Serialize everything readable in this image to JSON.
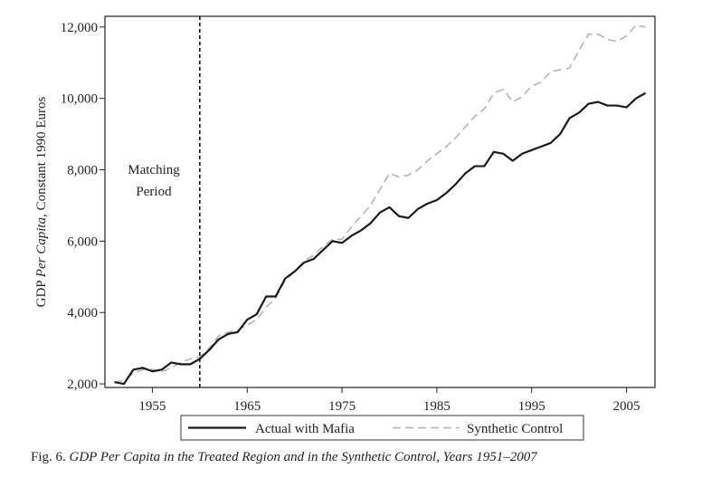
{
  "chart_data": {
    "type": "line",
    "ylabel_prefix": "GDP ",
    "ylabel_italic": "Per Capita",
    "ylabel_suffix": ", Constant 1990 Euros",
    "xlim": [
      1950,
      2008
    ],
    "ylim": [
      1900,
      12300
    ],
    "xticks": [
      1955,
      1965,
      1975,
      1985,
      1995,
      2005
    ],
    "yticks": [
      2000,
      4000,
      6000,
      8000,
      10000,
      12000
    ],
    "ytick_labels": [
      "2,000",
      "4,000",
      "6,000",
      "8,000",
      "10,000",
      "12,000"
    ],
    "grid": false,
    "legend_placement": "bottom",
    "annotation": {
      "line1": "Matching",
      "line2": "Period",
      "x": 1960
    },
    "series": [
      {
        "name": "Actual with Mafia",
        "style": "solid",
        "color": "#1a1a1a",
        "x": [
          1951,
          1952,
          1953,
          1954,
          1955,
          1956,
          1957,
          1958,
          1959,
          1960,
          1961,
          1962,
          1963,
          1964,
          1965,
          1966,
          1967,
          1968,
          1969,
          1970,
          1971,
          1972,
          1973,
          1974,
          1975,
          1976,
          1977,
          1978,
          1979,
          1980,
          1981,
          1982,
          1983,
          1984,
          1985,
          1986,
          1987,
          1988,
          1989,
          1990,
          1991,
          1992,
          1993,
          1994,
          1995,
          1996,
          1997,
          1998,
          1999,
          2000,
          2001,
          2002,
          2003,
          2004,
          2005,
          2006,
          2007
        ],
        "values": [
          2050,
          2000,
          2400,
          2450,
          2350,
          2400,
          2600,
          2550,
          2550,
          2700,
          2950,
          3250,
          3400,
          3450,
          3800,
          3950,
          4450,
          4450,
          4950,
          5150,
          5400,
          5500,
          5750,
          6000,
          5950,
          6150,
          6300,
          6500,
          6800,
          6950,
          6700,
          6650,
          6900,
          7050,
          7150,
          7350,
          7600,
          7900,
          8100,
          8100,
          8500,
          8450,
          8250,
          8450,
          8550,
          8650,
          8750,
          9000,
          9450,
          9600,
          9850,
          9900,
          9800,
          9800,
          9750,
          10000,
          10150
        ]
      },
      {
        "name": "Synthetic Control",
        "style": "dashed",
        "color": "#b0b0b0",
        "x": [
          1951,
          1952,
          1953,
          1954,
          1955,
          1956,
          1957,
          1958,
          1959,
          1960,
          1961,
          1962,
          1963,
          1964,
          1965,
          1966,
          1967,
          1968,
          1969,
          1970,
          1971,
          1972,
          1973,
          1974,
          1975,
          1976,
          1977,
          1978,
          1979,
          1980,
          1981,
          1982,
          1983,
          1984,
          1985,
          1986,
          1987,
          1988,
          1989,
          1990,
          1991,
          1992,
          1993,
          1994,
          1995,
          1996,
          1997,
          1998,
          1999,
          2000,
          2001,
          2002,
          2003,
          2004,
          2005,
          2006,
          2007
        ],
        "values": [
          2050,
          2100,
          2300,
          2400,
          2400,
          2350,
          2450,
          2600,
          2700,
          2750,
          3000,
          3350,
          3450,
          3500,
          3650,
          3800,
          4150,
          4400,
          4900,
          5150,
          5450,
          5600,
          5850,
          6050,
          6050,
          6400,
          6700,
          7000,
          7450,
          7900,
          7800,
          7850,
          8000,
          8250,
          8450,
          8650,
          8900,
          9200,
          9500,
          9700,
          10150,
          10250,
          9900,
          10050,
          10350,
          10450,
          10750,
          10800,
          10850,
          11350,
          11800,
          11800,
          11650,
          11600,
          11750,
          12050,
          12000
        ]
      }
    ]
  },
  "caption": {
    "prefix": "Fig. 6.",
    "title": "GDP Per Capita in the Treated Region and in the Synthetic Control, Years 1951–2007"
  }
}
